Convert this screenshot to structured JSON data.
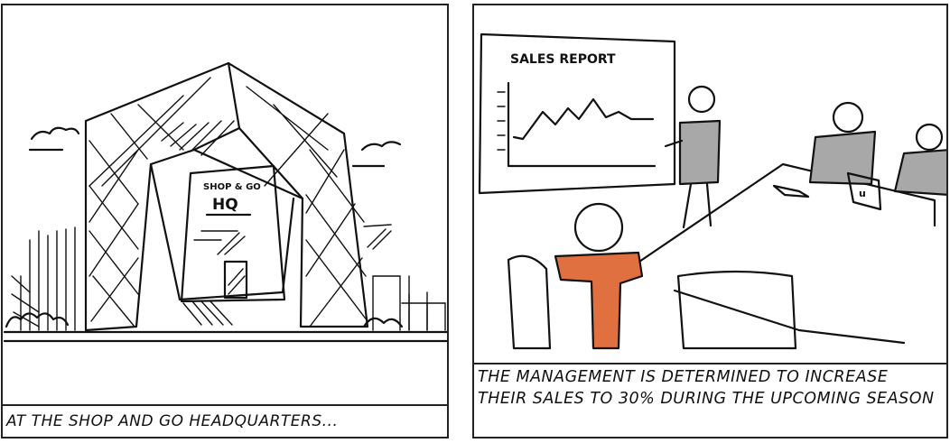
{
  "panels": [
    {
      "caption": "AT THE SHOP AND GO HEADQUARTERS...",
      "sign_top": "SHOP & GO",
      "sign_main": "HQ"
    },
    {
      "caption": "THE MANAGEMENT IS DETERMINED TO INCREASE THEIR SALES TO 30% DURING THE UPCOMING SEASON",
      "board_title": "SALES REPORT",
      "laptop_logo": "u"
    }
  ],
  "colors": {
    "ink": "#111111",
    "shirt_orange": "#e07040",
    "shirt_gray": "#a8a8a8",
    "panel_bg": "#ffffff"
  },
  "icons": {
    "building": "headquarters-building-illustration",
    "board": "sales-chart-board-illustration"
  }
}
